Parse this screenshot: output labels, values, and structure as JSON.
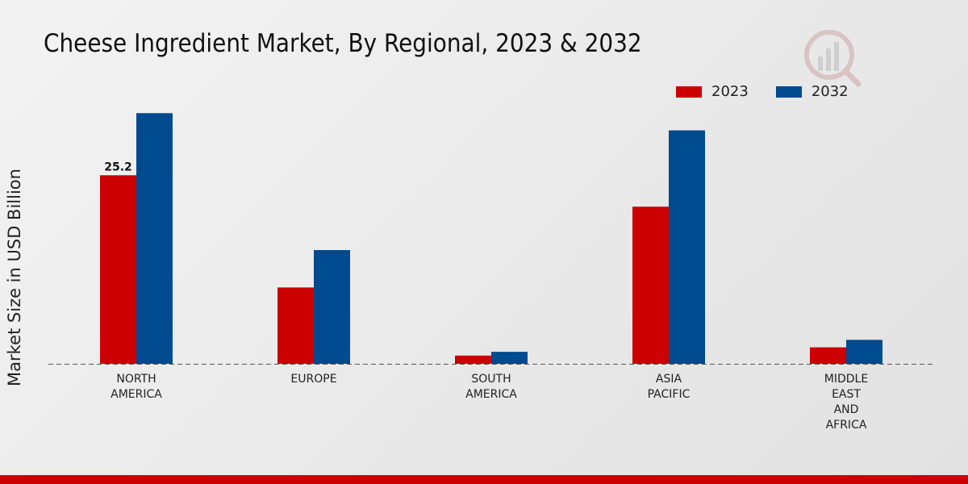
{
  "chart_data": {
    "type": "bar",
    "title": "Cheese Ingredient Market, By Regional, 2023 & 2032",
    "xlabel": "",
    "ylabel": "Market Size in USD Billion",
    "categories": [
      [
        "NORTH",
        "AMERICA"
      ],
      [
        "EUROPE"
      ],
      [
        "SOUTH",
        "AMERICA"
      ],
      [
        "ASIA",
        "PACIFIC"
      ],
      [
        "MIDDLE",
        "EAST",
        "AND",
        "AFRICA"
      ]
    ],
    "series": [
      {
        "name": "2023",
        "color": "#cc0000",
        "values": [
          25.2,
          10.2,
          1.1,
          21.0,
          2.2
        ]
      },
      {
        "name": "2032",
        "color": "#004a8f",
        "values": [
          33.5,
          15.2,
          1.6,
          31.2,
          3.2
        ]
      }
    ],
    "data_labels": [
      {
        "series": 0,
        "category": 0,
        "text": "25.2"
      }
    ],
    "ylim": [
      0,
      40
    ],
    "grid": false,
    "legend_position": "top-right"
  },
  "colors": {
    "bottom_bar": "#cc0000",
    "axis_line": "#555555"
  }
}
